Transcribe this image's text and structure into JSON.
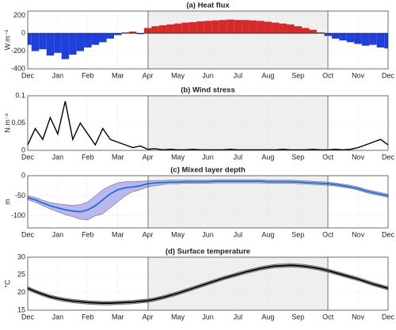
{
  "chart_data": [
    {
      "type": "bar",
      "title": "(a) Heat flux",
      "ylabel": "W.m⁻²",
      "categories": [
        "Dec",
        null,
        null,
        null,
        "Jan",
        null,
        null,
        null,
        "Feb",
        null,
        null,
        null,
        "Mar",
        null,
        null,
        null,
        "Apr",
        null,
        null,
        null,
        "May",
        null,
        null,
        null,
        "Jun",
        null,
        null,
        null,
        "Jul",
        null,
        null,
        null,
        "Aug",
        null,
        null,
        null,
        "Sep",
        null,
        null,
        null,
        "Oct",
        null,
        null,
        null,
        "Nov",
        null,
        null,
        null,
        "Dec"
      ],
      "values": [
        -130,
        -200,
        -180,
        -250,
        -220,
        -290,
        -240,
        -200,
        -160,
        -130,
        -100,
        -60,
        -20,
        10,
        20,
        -10,
        60,
        80,
        90,
        100,
        110,
        120,
        125,
        135,
        140,
        145,
        150,
        155,
        150,
        150,
        145,
        140,
        130,
        120,
        110,
        100,
        80,
        60,
        40,
        10,
        -30,
        -60,
        -80,
        -100,
        -120,
        -140,
        -130,
        -160,
        -170
      ],
      "color_positive": "#d42a2a",
      "color_negative": "#1f3fd8",
      "ylim": [
        -400,
        250
      ],
      "yticks": [
        -400,
        -200,
        0,
        200
      ],
      "grid": true
    },
    {
      "type": "line",
      "title": "(b) Wind stress",
      "ylabel": "N.m⁻²",
      "categories": [
        "Dec",
        null,
        null,
        null,
        "Jan",
        null,
        null,
        null,
        "Feb",
        null,
        null,
        null,
        "Mar",
        null,
        null,
        null,
        "Apr",
        null,
        null,
        null,
        "May",
        null,
        null,
        null,
        "Jun",
        null,
        null,
        null,
        "Jul",
        null,
        null,
        null,
        "Aug",
        null,
        null,
        null,
        "Sep",
        null,
        null,
        null,
        "Oct",
        null,
        null,
        null,
        "Nov",
        null,
        null,
        null,
        "Dec"
      ],
      "values": [
        0.01,
        0.04,
        0.02,
        0.06,
        0.03,
        0.09,
        0.02,
        0.05,
        0.03,
        0.01,
        0.04,
        0.02,
        0.015,
        0.01,
        0.005,
        0.008,
        0.002,
        0.003,
        0.001,
        0.002,
        0.001,
        0.001,
        0.002,
        0.001,
        0.001,
        0.001,
        0.001,
        0.002,
        0.001,
        0.001,
        0.001,
        0.001,
        0.001,
        0.001,
        0.002,
        0.001,
        0.001,
        0.001,
        0.002,
        0.001,
        0.001,
        0.002,
        0.001,
        0.002,
        0.005,
        0.01,
        0.015,
        0.02,
        0.01
      ],
      "color": "#000000",
      "ylim": [
        0,
        0.1
      ],
      "yticks": [
        0,
        0.05,
        0.1
      ],
      "grid": true
    },
    {
      "type": "line",
      "title": "(c) Mixed layer depth",
      "ylabel": "m",
      "categories": [
        "Dec",
        null,
        null,
        null,
        "Jan",
        null,
        null,
        null,
        "Feb",
        null,
        null,
        null,
        "Mar",
        null,
        null,
        null,
        "Apr",
        null,
        null,
        null,
        "May",
        null,
        null,
        null,
        "Jun",
        null,
        null,
        null,
        "Jul",
        null,
        null,
        null,
        "Aug",
        null,
        null,
        null,
        "Sep",
        null,
        null,
        null,
        "Oct",
        null,
        null,
        null,
        "Nov",
        null,
        null,
        null,
        "Dec"
      ],
      "values": [
        -55,
        -60,
        -68,
        -75,
        -80,
        -85,
        -88,
        -90,
        -85,
        -75,
        -60,
        -45,
        -35,
        -30,
        -28,
        -25,
        -20,
        -18,
        -17,
        -16,
        -16,
        -15,
        -15,
        -15,
        -15,
        -14,
        -14,
        -14,
        -14,
        -14,
        -14,
        -14,
        -15,
        -15,
        -15,
        -15,
        -16,
        -17,
        -18,
        -19,
        -20,
        -22,
        -25,
        -28,
        -32,
        -38,
        -42,
        -46,
        -50
      ],
      "lower": [
        -60,
        -66,
        -75,
        -83,
        -90,
        -97,
        -102,
        -108,
        -110,
        -100,
        -95,
        -80,
        -65,
        -50,
        -40,
        -35,
        -28,
        -25,
        -22,
        -20,
        -20,
        -19,
        -19,
        -19,
        -19,
        -18,
        -18,
        -18,
        -18,
        -18,
        -18,
        -18,
        -19,
        -19,
        -19,
        -19,
        -20,
        -21,
        -22,
        -23,
        -24,
        -26,
        -29,
        -32,
        -36,
        -42,
        -46,
        -50,
        -54
      ],
      "upper": [
        -50,
        -54,
        -61,
        -67,
        -70,
        -72,
        -74,
        -72,
        -65,
        -50,
        -35,
        -25,
        -18,
        -15,
        -15,
        -14,
        -13,
        -12,
        -12,
        -11,
        -11,
        -11,
        -11,
        -11,
        -11,
        -10,
        -10,
        -10,
        -10,
        -10,
        -10,
        -10,
        -11,
        -11,
        -11,
        -11,
        -12,
        -13,
        -14,
        -15,
        -16,
        -18,
        -21,
        -24,
        -28,
        -34,
        -38,
        -42,
        -46
      ],
      "color": "#1f6fd0",
      "band_color": "#b9b6f0",
      "ylim": [
        -130,
        0
      ],
      "yticks": [
        -100,
        -50,
        0
      ],
      "grid": true
    },
    {
      "type": "line",
      "title": "(d) Surface temperature",
      "ylabel": "°C",
      "categories": [
        "Dec",
        null,
        null,
        null,
        "Jan",
        null,
        null,
        null,
        "Feb",
        null,
        null,
        null,
        "Mar",
        null,
        null,
        null,
        "Apr",
        null,
        null,
        null,
        "May",
        null,
        null,
        null,
        "Jun",
        null,
        null,
        null,
        "Jul",
        null,
        null,
        null,
        "Aug",
        null,
        null,
        null,
        "Sep",
        null,
        null,
        null,
        "Oct",
        null,
        null,
        null,
        "Nov",
        null,
        null,
        null,
        "Dec"
      ],
      "values": [
        21.2,
        20.3,
        19.5,
        18.8,
        18.3,
        17.9,
        17.6,
        17.4,
        17.2,
        17.1,
        17.0,
        17.0,
        17.1,
        17.2,
        17.3,
        17.5,
        17.7,
        18.1,
        18.6,
        19.2,
        19.8,
        20.5,
        21.2,
        21.9,
        22.6,
        23.3,
        24.0,
        24.6,
        25.2,
        25.8,
        26.3,
        26.8,
        27.2,
        27.5,
        27.6,
        27.7,
        27.6,
        27.4,
        27.1,
        26.7,
        26.2,
        25.6,
        25.0,
        24.4,
        23.8,
        23.1,
        22.4,
        21.8,
        21.2
      ],
      "band": 0.5,
      "color": "#000000",
      "band_color": "#999999",
      "ylim": [
        15,
        30
      ],
      "yticks": [
        15,
        20,
        25,
        30
      ],
      "grid": true
    }
  ]
}
